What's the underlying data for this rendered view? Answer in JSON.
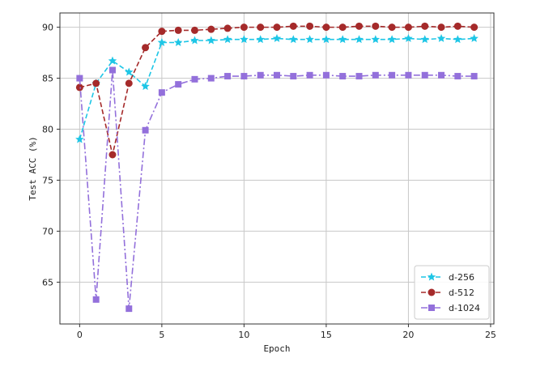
{
  "chart_data": {
    "type": "line",
    "title": "",
    "xlabel": "Epoch",
    "ylabel": "Test ACC (%)",
    "xlim": [
      -1.2,
      25.2
    ],
    "ylim": [
      60.9,
      91.4
    ],
    "xticks": [
      0,
      5,
      10,
      15,
      20,
      25
    ],
    "yticks": [
      65,
      70,
      75,
      80,
      85,
      90
    ],
    "grid": true,
    "legend_position": "bottom-right",
    "x": [
      0,
      1,
      2,
      3,
      4,
      5,
      6,
      7,
      8,
      9,
      10,
      11,
      12,
      13,
      14,
      15,
      16,
      17,
      18,
      19,
      20,
      21,
      22,
      23,
      24
    ],
    "series": [
      {
        "name": "d-256",
        "color": "#1ec6e6",
        "linestyle": "dashed",
        "marker": "star",
        "values": [
          79.0,
          84.5,
          86.7,
          85.6,
          84.2,
          88.5,
          88.5,
          88.7,
          88.7,
          88.8,
          88.8,
          88.8,
          88.9,
          88.8,
          88.8,
          88.8,
          88.8,
          88.8,
          88.8,
          88.8,
          88.9,
          88.8,
          88.9,
          88.8,
          88.9
        ]
      },
      {
        "name": "d-512",
        "color": "#a52a2a",
        "linestyle": "dashed",
        "marker": "circle",
        "values": [
          84.1,
          84.5,
          77.5,
          84.5,
          88.0,
          89.6,
          89.7,
          89.7,
          89.8,
          89.9,
          90.0,
          90.0,
          90.0,
          90.1,
          90.1,
          90.0,
          90.0,
          90.1,
          90.1,
          90.0,
          90.0,
          90.1,
          90.0,
          90.1,
          90.0
        ]
      },
      {
        "name": "d-1024",
        "color": "#9370db",
        "linestyle": "dashdot",
        "marker": "square",
        "values": [
          85.0,
          63.3,
          85.8,
          62.4,
          79.9,
          83.6,
          84.4,
          84.9,
          85.0,
          85.2,
          85.2,
          85.3,
          85.3,
          85.2,
          85.3,
          85.3,
          85.2,
          85.2,
          85.3,
          85.3,
          85.3,
          85.3,
          85.3,
          85.2,
          85.2
        ]
      }
    ]
  }
}
